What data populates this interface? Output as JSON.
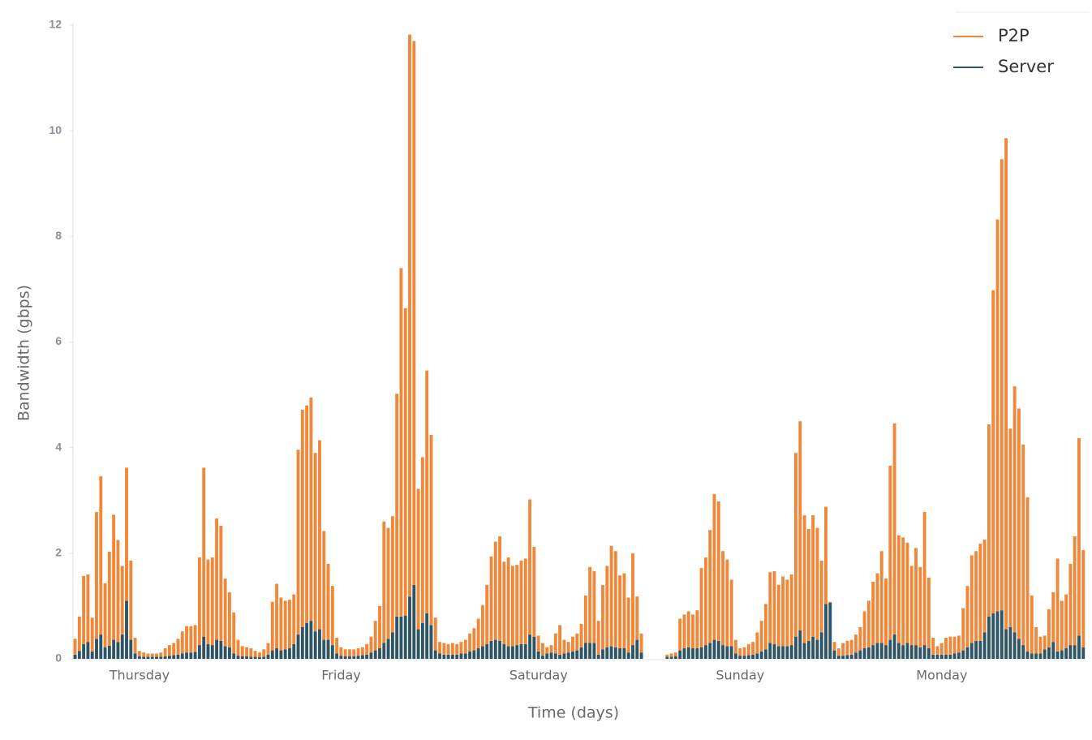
{
  "chart_data": {
    "type": "stacked-bar",
    "x_label": "Time (days)",
    "y_label": "Bandwidth (gbps)",
    "legend": "top-right",
    "ylim": [
      0,
      12
    ],
    "yticks": [
      0,
      2,
      4,
      6,
      8,
      10,
      12
    ],
    "categories": [
      null,
      null,
      null,
      null,
      null,
      null,
      null,
      null,
      null,
      null,
      null,
      null,
      null,
      null,
      null,
      "Thursday",
      null,
      null,
      null,
      null,
      null,
      null,
      null,
      null,
      null,
      null,
      null,
      null,
      null,
      null,
      null,
      null,
      null,
      null,
      null,
      null,
      null,
      null,
      null,
      null,
      null,
      null,
      null,
      null,
      null,
      null,
      null,
      null,
      null,
      null,
      null,
      null,
      null,
      null,
      null,
      null,
      null,
      null,
      null,
      null,
      null,
      null,
      "Friday",
      null,
      null,
      null,
      null,
      null,
      null,
      null,
      null,
      null,
      null,
      null,
      null,
      null,
      null,
      null,
      null,
      null,
      null,
      null,
      null,
      null,
      null,
      null,
      null,
      null,
      null,
      null,
      null,
      null,
      null,
      null,
      null,
      null,
      null,
      null,
      null,
      null,
      null,
      null,
      null,
      null,
      null,
      null,
      null,
      null,
      "Saturday",
      null,
      null,
      null,
      null,
      null,
      null,
      null,
      null,
      null,
      null,
      null,
      null,
      null,
      null,
      null,
      null,
      null,
      null,
      null,
      null,
      null,
      null,
      null,
      null,
      null,
      null,
      null,
      null,
      null,
      null,
      null,
      null,
      null,
      null,
      null,
      null,
      null,
      null,
      null,
      null,
      null,
      null,
      null,
      null,
      null,
      null,
      "Sunday",
      null,
      null,
      null,
      null,
      null,
      null,
      null,
      null,
      null,
      null,
      null,
      null,
      null,
      null,
      null,
      null,
      null,
      null,
      null,
      null,
      null,
      null,
      null,
      null,
      null,
      null,
      null,
      null,
      null,
      null,
      null,
      null,
      null,
      null,
      null,
      null,
      null,
      null,
      null,
      null,
      null,
      null,
      null,
      null,
      null,
      null,
      "Monday",
      null,
      null,
      null,
      null,
      null,
      null,
      null,
      null,
      null,
      null,
      null,
      null,
      null,
      null,
      null,
      null,
      null,
      null,
      null,
      null,
      null,
      null,
      null,
      null,
      null,
      null,
      null,
      null,
      null,
      null,
      null,
      null,
      null
    ],
    "series": [
      {
        "name": "P2P",
        "color": "#f0883a",
        "values": [
          0.3,
          0.65,
          1.29,
          1.28,
          0.64,
          2.4,
          3.0,
          1.21,
          1.78,
          2.37,
          1.93,
          1.3,
          2.52,
          1.5,
          0.3,
          0.1,
          0.08,
          0.06,
          0.06,
          0.06,
          0.08,
          0.15,
          0.2,
          0.23,
          0.3,
          0.42,
          0.5,
          0.5,
          0.51,
          1.66,
          3.2,
          1.6,
          1.66,
          2.3,
          2.18,
          1.28,
          1.04,
          0.78,
          0.3,
          0.19,
          0.17,
          0.16,
          0.11,
          0.09,
          0.14,
          0.22,
          0.92,
          1.22,
          1.0,
          0.92,
          0.92,
          0.94,
          3.5,
          4.12,
          4.12,
          4.23,
          3.38,
          3.58,
          2.06,
          1.44,
          1.12,
          0.3,
          0.16,
          0.13,
          0.13,
          0.13,
          0.14,
          0.15,
          0.2,
          0.3,
          0.56,
          0.8,
          2.3,
          2.1,
          2.2,
          4.22,
          6.6,
          5.82,
          10.64,
          10.3,
          2.66,
          3.14,
          4.6,
          3.6,
          0.62,
          0.22,
          0.22,
          0.2,
          0.22,
          0.2,
          0.22,
          0.26,
          0.34,
          0.42,
          0.56,
          0.78,
          1.12,
          1.6,
          1.86,
          1.98,
          1.56,
          1.68,
          1.52,
          1.52,
          1.58,
          1.62,
          2.56,
          1.7,
          0.3,
          0.24,
          0.12,
          0.14,
          0.38,
          0.56,
          0.26,
          0.2,
          0.28,
          0.32,
          0.44,
          0.9,
          1.44,
          1.36,
          0.64,
          1.22,
          1.54,
          1.9,
          1.82,
          1.38,
          1.42,
          1.04,
          1.74,
          0.82,
          0.36,
          null,
          null,
          null,
          null,
          null,
          0.04,
          0.06,
          0.07,
          0.6,
          0.64,
          0.68,
          0.64,
          0.72,
          1.5,
          1.66,
          2.14,
          2.76,
          2.64,
          1.78,
          1.64,
          1.26,
          0.26,
          0.14,
          0.16,
          0.21,
          0.24,
          0.4,
          0.58,
          0.86,
          1.34,
          1.38,
          1.16,
          1.32,
          1.26,
          1.34,
          3.48,
          3.96,
          2.42,
          2.12,
          2.3,
          2.12,
          1.36,
          1.84,
          0.02,
          0.16,
          0.14,
          0.24,
          0.27,
          0.28,
          0.34,
          0.44,
          0.7,
          0.88,
          1.2,
          1.32,
          1.74,
          1.26,
          3.3,
          4.0,
          2.04,
          2.04,
          1.9,
          1.5,
          1.84,
          1.52,
          2.52,
          1.34,
          0.32,
          0.16,
          0.22,
          0.32,
          0.34,
          0.32,
          0.32,
          0.8,
          1.16,
          1.66,
          1.7,
          1.84,
          1.76,
          3.64,
          6.12,
          7.42,
          8.54,
          9.3,
          3.76,
          4.66,
          4.36,
          3.8,
          2.92,
          1.1,
          0.5,
          0.32,
          0.26,
          0.72,
          0.94,
          1.76,
          0.94,
          1.02,
          1.54,
          2.06,
          3.74,
          1.84
        ]
      },
      {
        "name": "Server",
        "color": "#2e5566",
        "values": [
          0.08,
          0.15,
          0.28,
          0.32,
          0.14,
          0.38,
          0.46,
          0.22,
          0.25,
          0.36,
          0.32,
          0.46,
          1.1,
          0.36,
          0.1,
          0.05,
          0.04,
          0.04,
          0.04,
          0.04,
          0.04,
          0.05,
          0.06,
          0.07,
          0.08,
          0.1,
          0.12,
          0.12,
          0.13,
          0.26,
          0.42,
          0.28,
          0.26,
          0.36,
          0.34,
          0.24,
          0.22,
          0.1,
          0.06,
          0.05,
          0.05,
          0.04,
          0.04,
          0.03,
          0.04,
          0.08,
          0.16,
          0.2,
          0.16,
          0.18,
          0.2,
          0.28,
          0.46,
          0.6,
          0.68,
          0.72,
          0.52,
          0.56,
          0.36,
          0.36,
          0.26,
          0.1,
          0.06,
          0.05,
          0.05,
          0.05,
          0.06,
          0.07,
          0.08,
          0.12,
          0.16,
          0.2,
          0.3,
          0.38,
          0.5,
          0.8,
          0.8,
          0.82,
          1.18,
          1.4,
          0.56,
          0.68,
          0.86,
          0.64,
          0.16,
          0.1,
          0.08,
          0.08,
          0.08,
          0.08,
          0.1,
          0.1,
          0.14,
          0.16,
          0.2,
          0.24,
          0.28,
          0.34,
          0.36,
          0.34,
          0.28,
          0.24,
          0.24,
          0.26,
          0.28,
          0.28,
          0.46,
          0.42,
          0.14,
          0.06,
          0.1,
          0.12,
          0.1,
          0.08,
          0.1,
          0.12,
          0.14,
          0.16,
          0.22,
          0.3,
          0.3,
          0.3,
          0.08,
          0.18,
          0.22,
          0.24,
          0.22,
          0.2,
          0.2,
          0.12,
          0.26,
          0.36,
          0.12,
          null,
          null,
          null,
          null,
          null,
          0.04,
          0.04,
          0.05,
          0.16,
          0.2,
          0.22,
          0.2,
          0.2,
          0.22,
          0.26,
          0.3,
          0.36,
          0.34,
          0.26,
          0.24,
          0.24,
          0.1,
          0.06,
          0.06,
          0.07,
          0.08,
          0.1,
          0.14,
          0.18,
          0.3,
          0.28,
          0.24,
          0.24,
          0.24,
          0.26,
          0.42,
          0.54,
          0.3,
          0.34,
          0.42,
          0.36,
          0.5,
          1.04,
          1.06,
          0.16,
          0.06,
          0.06,
          0.07,
          0.08,
          0.12,
          0.16,
          0.2,
          0.22,
          0.26,
          0.3,
          0.3,
          0.26,
          0.36,
          0.46,
          0.3,
          0.26,
          0.3,
          0.26,
          0.26,
          0.22,
          0.26,
          0.2,
          0.08,
          0.08,
          0.08,
          0.08,
          0.08,
          0.1,
          0.12,
          0.16,
          0.22,
          0.3,
          0.34,
          0.34,
          0.5,
          0.8,
          0.86,
          0.9,
          0.92,
          0.56,
          0.6,
          0.5,
          0.38,
          0.26,
          0.14,
          0.1,
          0.1,
          0.1,
          0.18,
          0.22,
          0.32,
          0.14,
          0.16,
          0.2,
          0.26,
          0.26,
          0.44,
          0.22
        ]
      }
    ]
  }
}
